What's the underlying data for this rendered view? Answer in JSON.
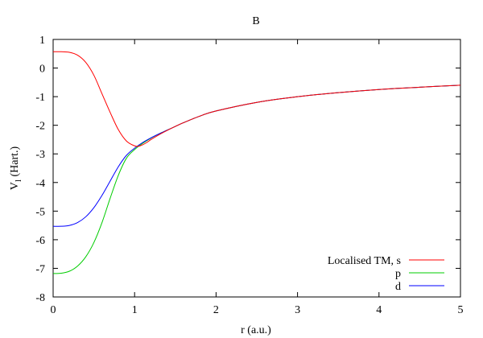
{
  "chart_data": {
    "type": "line",
    "title": "B",
    "xlabel": "r (a.u.)",
    "ylabel_main": "V",
    "ylabel_sub": "l",
    "ylabel_rest": " (Hart.)",
    "xlim": [
      0,
      5
    ],
    "ylim": [
      -8,
      1
    ],
    "xticks": [
      "0",
      "1",
      "2",
      "3",
      "4",
      "5"
    ],
    "yticks": [
      "1",
      "0",
      "-1",
      "-2",
      "-3",
      "-4",
      "-5",
      "-6",
      "-7",
      "-8"
    ],
    "grid": false,
    "legend_position": "bottom-right",
    "series": [
      {
        "name": "Localised TM, s",
        "color": "#ff0000",
        "x": [
          0,
          0.1,
          0.2,
          0.3,
          0.4,
          0.5,
          0.6,
          0.7,
          0.8,
          0.9,
          1.0,
          1.05,
          1.1,
          1.15,
          1.2,
          1.3,
          1.4,
          1.5,
          1.6,
          1.8,
          2.0,
          2.5,
          3.0,
          3.5,
          4.0,
          4.5,
          5.0
        ],
        "y": [
          0.57,
          0.57,
          0.55,
          0.45,
          0.2,
          -0.25,
          -0.9,
          -1.55,
          -2.15,
          -2.55,
          -2.72,
          -2.73,
          -2.68,
          -2.6,
          -2.5,
          -2.33,
          -2.18,
          -2.04,
          -1.91,
          -1.68,
          -1.5,
          -1.2,
          -1.0,
          -0.86,
          -0.75,
          -0.67,
          -0.6
        ]
      },
      {
        "name": "p",
        "color": "#00cc00",
        "x": [
          0,
          0.1,
          0.2,
          0.3,
          0.4,
          0.5,
          0.6,
          0.7,
          0.8,
          0.9,
          1.0,
          1.1,
          1.2,
          1.3,
          1.4,
          1.5,
          1.6,
          1.8,
          2.0,
          2.5,
          3.0,
          3.5,
          4.0,
          4.5,
          5.0
        ],
        "y": [
          -7.18,
          -7.17,
          -7.1,
          -6.92,
          -6.6,
          -6.1,
          -5.4,
          -4.55,
          -3.75,
          -3.15,
          -2.85,
          -2.63,
          -2.45,
          -2.3,
          -2.17,
          -2.04,
          -1.91,
          -1.68,
          -1.5,
          -1.2,
          -1.0,
          -0.86,
          -0.75,
          -0.67,
          -0.6
        ]
      },
      {
        "name": "d",
        "color": "#0000ff",
        "x": [
          0,
          0.1,
          0.2,
          0.3,
          0.4,
          0.5,
          0.6,
          0.7,
          0.8,
          0.9,
          1.0,
          1.1,
          1.2,
          1.3,
          1.4,
          1.5,
          1.6,
          1.8,
          2.0,
          2.5,
          3.0,
          3.5,
          4.0,
          4.5,
          5.0
        ],
        "y": [
          -5.53,
          -5.53,
          -5.5,
          -5.4,
          -5.2,
          -4.88,
          -4.45,
          -3.95,
          -3.45,
          -3.05,
          -2.8,
          -2.6,
          -2.44,
          -2.3,
          -2.17,
          -2.04,
          -1.91,
          -1.68,
          -1.5,
          -1.2,
          -1.0,
          -0.86,
          -0.75,
          -0.67,
          -0.6
        ]
      }
    ]
  }
}
